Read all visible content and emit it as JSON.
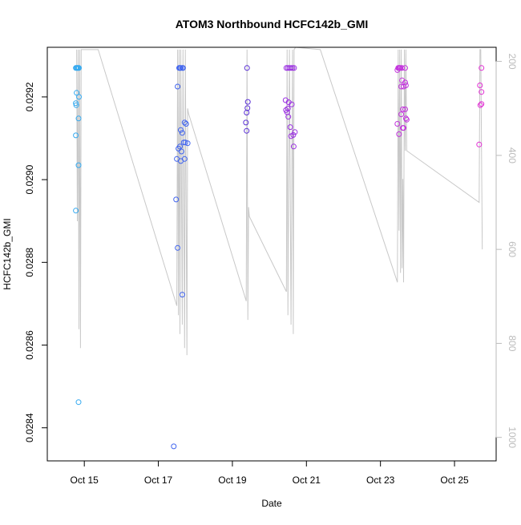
{
  "chart_data": {
    "type": "scatter",
    "title": "ATOM3 Northbound HCFC142b_GMI",
    "xlabel": "Date",
    "ylabel": "HCFC142b_GMI",
    "xlim": [
      "2016-10-14T00:00",
      "2016-10-26T03:00"
    ],
    "ylim": [
      0.02832,
      0.02932
    ],
    "y2lim": [
      1050,
      170
    ],
    "grid": false,
    "legend": "none",
    "x_ticks": [
      {
        "date": "2016-10-15",
        "label": "Oct 15"
      },
      {
        "date": "2016-10-17",
        "label": "Oct 17"
      },
      {
        "date": "2016-10-19",
        "label": "Oct 19"
      },
      {
        "date": "2016-10-21",
        "label": "Oct 21"
      },
      {
        "date": "2016-10-23",
        "label": "Oct 23"
      },
      {
        "date": "2016-10-25",
        "label": "Oct 25"
      }
    ],
    "y_ticks": [
      "0.0284",
      "0.0286",
      "0.0288",
      "0.0290",
      "0.0292"
    ],
    "y2_ticks": [
      "200",
      "400",
      "600",
      "800",
      "1000"
    ],
    "line_color": "#c8c8c8",
    "pressure_trace": [
      [
        "2016-10-14T19:00",
        175
      ],
      [
        "2016-10-14T19:30",
        540
      ],
      [
        "2016-10-14T20:00",
        175
      ],
      [
        "2016-10-14T20:30",
        770
      ],
      [
        "2016-10-14T21:00",
        175
      ],
      [
        "2016-10-14T21:30",
        810
      ],
      [
        "2016-10-14T22:00",
        175
      ],
      [
        "2016-10-15T09:00",
        175
      ],
      [
        "2016-10-17T12:00",
        720
      ],
      [
        "2016-10-17T12:30",
        175
      ],
      [
        "2016-10-17T13:00",
        740
      ],
      [
        "2016-10-17T13:30",
        175
      ],
      [
        "2016-10-17T14:00",
        780
      ],
      [
        "2016-10-17T14:30",
        175
      ],
      [
        "2016-10-17T15:30",
        760
      ],
      [
        "2016-10-17T16:00",
        175
      ],
      [
        "2016-10-17T17:00",
        810
      ],
      [
        "2016-10-17T17:30",
        175
      ],
      [
        "2016-10-17T18:30",
        825
      ],
      [
        "2016-10-17T19:00",
        300
      ],
      [
        "2016-10-17T19:30",
        310
      ],
      [
        "2016-10-19T09:00",
        710
      ],
      [
        "2016-10-19T09:30",
        175
      ],
      [
        "2016-10-19T10:00",
        750
      ],
      [
        "2016-10-19T10:30",
        510
      ],
      [
        "2016-10-19T11:00",
        530
      ],
      [
        "2016-10-20T11:00",
        690
      ],
      [
        "2016-10-20T11:30",
        175
      ],
      [
        "2016-10-20T12:00",
        740
      ],
      [
        "2016-10-20T13:00",
        175
      ],
      [
        "2016-10-20T14:00",
        760
      ],
      [
        "2016-10-20T15:00",
        175
      ],
      [
        "2016-10-20T15:30",
        780
      ],
      [
        "2016-10-20T16:00",
        175
      ],
      [
        "2016-10-20T17:00",
        170
      ],
      [
        "2016-10-21T09:00",
        175
      ],
      [
        "2016-10-23T11:00",
        670
      ],
      [
        "2016-10-23T11:30",
        175
      ],
      [
        "2016-10-23T12:00",
        560
      ],
      [
        "2016-10-23T12:30",
        175
      ],
      [
        "2016-10-23T13:00",
        650
      ],
      [
        "2016-10-23T13:30",
        175
      ],
      [
        "2016-10-23T14:00",
        640
      ],
      [
        "2016-10-23T14:30",
        450
      ],
      [
        "2016-10-23T15:00",
        670
      ],
      [
        "2016-10-23T15:30",
        175
      ],
      [
        "2016-10-23T16:00",
        390
      ],
      [
        "2016-10-23T16:30",
        175
      ],
      [
        "2016-10-23T17:00",
        390
      ],
      [
        "2016-10-25T16:00",
        500
      ],
      [
        "2016-10-25T16:30",
        175
      ],
      [
        "2016-10-25T17:00",
        175
      ],
      [
        "2016-10-25T18:00",
        600
      ]
    ],
    "points": [
      [
        "2016-10-14T18:30",
        0.02927,
        "#33a9f0"
      ],
      [
        "2016-10-14T19:00",
        0.02927,
        "#33a9f0"
      ],
      [
        "2016-10-14T19:30",
        0.02927,
        "#33a9f0"
      ],
      [
        "2016-10-14T20:00",
        0.02927,
        "#33a9f0"
      ],
      [
        "2016-10-14T20:30",
        0.02927,
        "#33a9f0"
      ],
      [
        "2016-10-14T19:00",
        0.02921,
        "#33a9f0"
      ],
      [
        "2016-10-14T18:30",
        0.029185,
        "#33a9f0"
      ],
      [
        "2016-10-14T18:45",
        0.02918,
        "#33a9f0"
      ],
      [
        "2016-10-14T20:30",
        0.0292,
        "#33a9f0"
      ],
      [
        "2016-10-14T20:15",
        0.029148,
        "#33a9f0"
      ],
      [
        "2016-10-14T18:30",
        0.029107,
        "#33a9f0"
      ],
      [
        "2016-10-14T20:15",
        0.029035,
        "#33a9f0"
      ],
      [
        "2016-10-14T18:30",
        0.028925,
        "#33a9f0"
      ],
      [
        "2016-10-14T20:15",
        0.028462,
        "#33a9f0"
      ],
      [
        "2016-10-17T13:30",
        0.02927,
        "#3f63ef"
      ],
      [
        "2016-10-17T14:00",
        0.02927,
        "#3f63ef"
      ],
      [
        "2016-10-17T14:30",
        0.02927,
        "#3f63ef"
      ],
      [
        "2016-10-17T15:30",
        0.02927,
        "#3f63ef"
      ],
      [
        "2016-10-17T16:00",
        0.02927,
        "#3f63ef"
      ],
      [
        "2016-10-17T12:30",
        0.029225,
        "#3f63ef"
      ],
      [
        "2016-10-17T17:00",
        0.029138,
        "#3f63ef"
      ],
      [
        "2016-10-17T18:00",
        0.029135,
        "#3f63ef"
      ],
      [
        "2016-10-17T14:30",
        0.02912,
        "#3f63ef"
      ],
      [
        "2016-10-17T15:30",
        0.029113,
        "#3f63ef"
      ],
      [
        "2016-10-17T16:30",
        0.02909,
        "#3f63ef"
      ],
      [
        "2016-10-17T17:30",
        0.02909,
        "#3f63ef"
      ],
      [
        "2016-10-17T19:00",
        0.029088,
        "#3f63ef"
      ],
      [
        "2016-10-17T14:00",
        0.02908,
        "#3f63ef"
      ],
      [
        "2016-10-17T13:00",
        0.029075,
        "#3f63ef"
      ],
      [
        "2016-10-17T15:00",
        0.029068,
        "#3f63ef"
      ],
      [
        "2016-10-17T12:00",
        0.02905,
        "#3f63ef"
      ],
      [
        "2016-10-17T17:00",
        0.02905,
        "#3f63ef"
      ],
      [
        "2016-10-17T14:30",
        0.029045,
        "#3f63ef"
      ],
      [
        "2016-10-17T11:30",
        0.028952,
        "#3f63ef"
      ],
      [
        "2016-10-17T12:30",
        0.028835,
        "#3f63ef"
      ],
      [
        "2016-10-17T15:30",
        0.028722,
        "#3f63ef"
      ],
      [
        "2016-10-17T10:00",
        0.028355,
        "#3f63ef"
      ],
      [
        "2016-10-19T09:30",
        0.02927,
        "#5a30d6"
      ],
      [
        "2016-10-19T10:00",
        0.029188,
        "#5a30d6"
      ],
      [
        "2016-10-19T09:45",
        0.029173,
        "#5a30d6"
      ],
      [
        "2016-10-19T09:15",
        0.029162,
        "#5a30d6"
      ],
      [
        "2016-10-19T08:45",
        0.029138,
        "#5a30d6"
      ],
      [
        "2016-10-19T09:15",
        0.029118,
        "#5a30d6"
      ],
      [
        "2016-10-20T11:00",
        0.02927,
        "#9b30e2"
      ],
      [
        "2016-10-20T12:00",
        0.02927,
        "#9b30e2"
      ],
      [
        "2016-10-20T13:00",
        0.02927,
        "#9b30e2"
      ],
      [
        "2016-10-20T14:00",
        0.02927,
        "#9b30e2"
      ],
      [
        "2016-10-20T15:00",
        0.02927,
        "#9b30e2"
      ],
      [
        "2016-10-20T16:00",
        0.02927,
        "#9b30e2"
      ],
      [
        "2016-10-20T10:30",
        0.029192,
        "#9b30e2"
      ],
      [
        "2016-10-20T12:30",
        0.029187,
        "#9b30e2"
      ],
      [
        "2016-10-20T14:30",
        0.029182,
        "#9b30e2"
      ],
      [
        "2016-10-20T12:00",
        0.029172,
        "#9b30e2"
      ],
      [
        "2016-10-20T10:45",
        0.029168,
        "#9b30e2"
      ],
      [
        "2016-10-20T11:30",
        0.029163,
        "#9b30e2"
      ],
      [
        "2016-10-20T12:15",
        0.029152,
        "#9b30e2"
      ],
      [
        "2016-10-20T13:30",
        0.029127,
        "#9b30e2"
      ],
      [
        "2016-10-20T16:30",
        0.029115,
        "#9b30e2"
      ],
      [
        "2016-10-20T15:30",
        0.029108,
        "#9b30e2"
      ],
      [
        "2016-10-20T14:00",
        0.029105,
        "#9b30e2"
      ],
      [
        "2016-10-20T15:45",
        0.02908,
        "#9b30e2"
      ],
      [
        "2016-10-23T11:00",
        0.029265,
        "#c333dd"
      ],
      [
        "2016-10-23T11:30",
        0.02927,
        "#c333dd"
      ],
      [
        "2016-10-23T12:00",
        0.02927,
        "#c333dd"
      ],
      [
        "2016-10-23T12:30",
        0.02927,
        "#c333dd"
      ],
      [
        "2016-10-23T13:00",
        0.02927,
        "#c333dd"
      ],
      [
        "2016-10-23T14:00",
        0.02927,
        "#c333dd"
      ],
      [
        "2016-10-23T16:00",
        0.02927,
        "#c333dd"
      ],
      [
        "2016-10-23T14:00",
        0.02924,
        "#c333dd"
      ],
      [
        "2016-10-23T16:00",
        0.029235,
        "#c333dd"
      ],
      [
        "2016-10-23T16:30",
        0.029228,
        "#c333dd"
      ],
      [
        "2016-10-23T13:30",
        0.029225,
        "#c333dd"
      ],
      [
        "2016-10-23T15:00",
        0.029225,
        "#c333dd"
      ],
      [
        "2016-10-23T14:30",
        0.02917,
        "#c333dd"
      ],
      [
        "2016-10-23T16:00",
        0.02917,
        "#c333dd"
      ],
      [
        "2016-10-23T13:30",
        0.029158,
        "#c333dd"
      ],
      [
        "2016-10-23T16:30",
        0.029148,
        "#c333dd"
      ],
      [
        "2016-10-23T17:00",
        0.029145,
        "#c333dd"
      ],
      [
        "2016-10-23T11:00",
        0.029135,
        "#c333dd"
      ],
      [
        "2016-10-23T15:00",
        0.029125,
        "#c333dd"
      ],
      [
        "2016-10-23T14:30",
        0.029125,
        "#c333dd"
      ],
      [
        "2016-10-23T12:00",
        0.02911,
        "#c333dd"
      ],
      [
        "2016-10-25T17:30",
        0.02927,
        "#e22fd4"
      ],
      [
        "2016-10-25T16:30",
        0.029228,
        "#e22fd4"
      ],
      [
        "2016-10-25T17:30",
        0.029212,
        "#e22fd4"
      ],
      [
        "2016-10-25T17:30",
        0.029183,
        "#e22fd4"
      ],
      [
        "2016-10-25T16:45",
        0.02918,
        "#e22fd4"
      ],
      [
        "2016-10-25T16:00",
        0.029085,
        "#e22fd4"
      ]
    ]
  }
}
